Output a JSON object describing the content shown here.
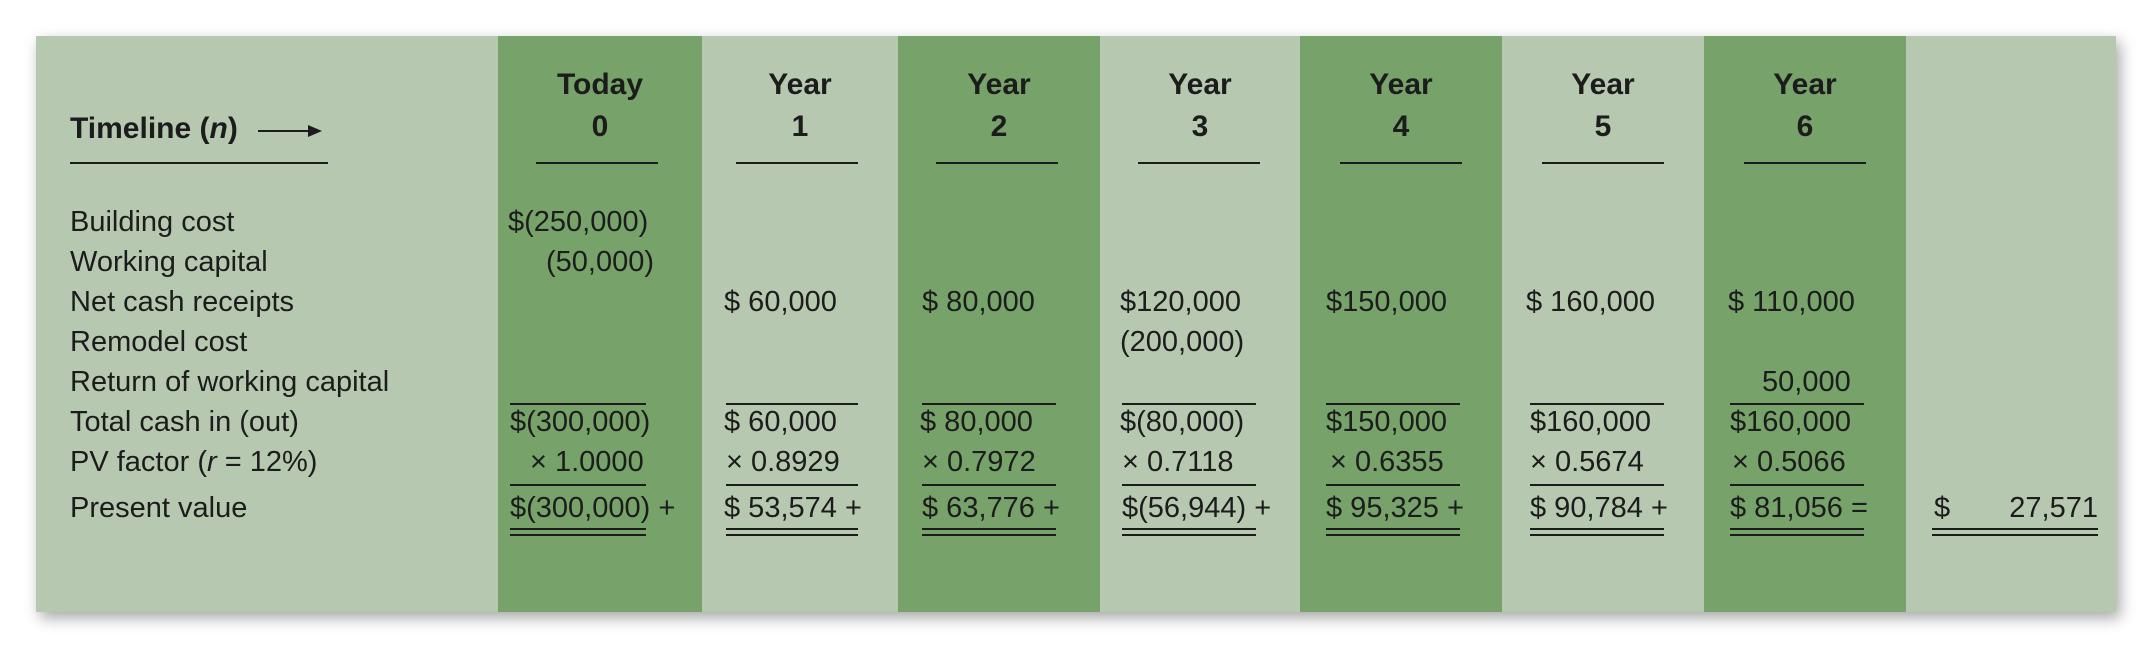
{
  "timeline": {
    "label": "Timeline (",
    "n": "n",
    "close": ")"
  },
  "columns": [
    {
      "line1": "Today",
      "line2": "0"
    },
    {
      "line1": "Year",
      "line2": "1"
    },
    {
      "line1": "Year",
      "line2": "2"
    },
    {
      "line1": "Year",
      "line2": "3"
    },
    {
      "line1": "Year",
      "line2": "4"
    },
    {
      "line1": "Year",
      "line2": "5"
    },
    {
      "line1": "Year",
      "line2": "6"
    }
  ],
  "rows": {
    "building_cost": "Building cost",
    "working_capital": "Working capital",
    "net_cash_receipts": "Net cash receipts",
    "remodel_cost": "Remodel cost",
    "return_working_capital": "Return of working capital",
    "total_cash": "Total cash in (out)",
    "pv_factor_a": "PV factor (",
    "pv_factor_r": "r",
    "pv_factor_b": " = 12%)",
    "present_value": "Present value"
  },
  "values": {
    "building_cost_0": "$(250,000)",
    "working_capital_0": "(50,000)",
    "net_1": "$  60,000",
    "net_2": "$  80,000",
    "net_3": "$120,000",
    "net_4": "$150,000",
    "net_5": "$ 160,000",
    "net_6": "$ 110,000",
    "remodel_3": "(200,000)",
    "return_wc_6": "50,000",
    "total": [
      "$(300,000)",
      "$ 60,000",
      "$ 80,000",
      "$(80,000)",
      "$150,000",
      "$160,000",
      "$160,000"
    ],
    "pv_factor": [
      "× 1.0000",
      "× 0.8929",
      "× 0.7972",
      "× 0.7118",
      "× 0.6355",
      "× 0.5674",
      "× 0.5066"
    ],
    "present_value": [
      "$(300,000) +",
      "$ 53,574 +",
      "$ 63,776 +",
      "$(56,944) +",
      "$ 95,325 +",
      "$ 90,784 +",
      "$ 81,056 ="
    ],
    "npv_symbol": "$",
    "npv_amount": "27,571"
  }
}
